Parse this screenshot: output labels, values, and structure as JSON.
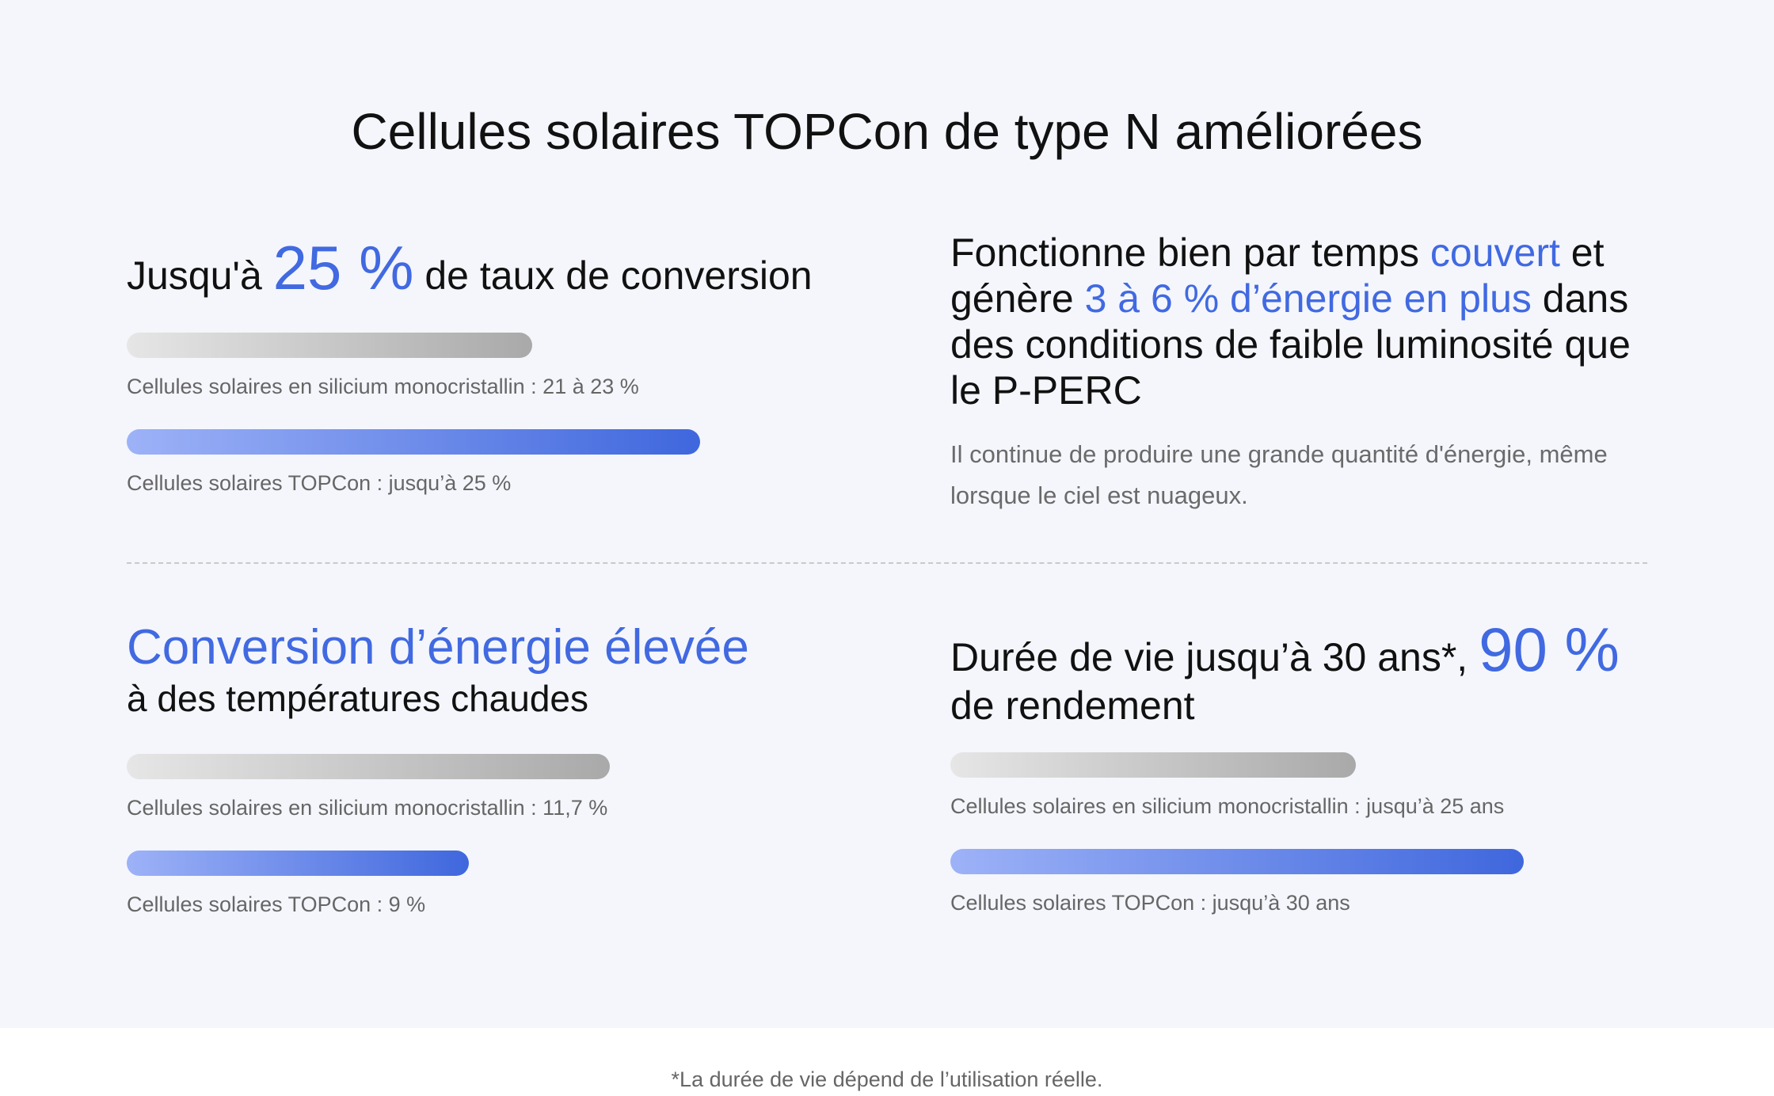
{
  "title": "Cellules solaires TOPCon de type N améliorées",
  "efficiency": {
    "prefix": "Jusqu'à ",
    "highlight": "25 %",
    "suffix": " de taux de conversion",
    "bars": [
      {
        "caption": "Cellules solaires en silicium monocristallin : 21 à 23 %",
        "level": 0.24
      },
      {
        "caption": "Cellules solaires TOPCon : jusqu’à 25 %",
        "level": 0.34
      }
    ]
  },
  "low_light": {
    "part1": "Fonctionne bien par temps ",
    "accent1": "couvert",
    "part2": " et génère ",
    "accent2": "3 à 6 % d’énergie en plus",
    "part3": " dans des conditions de faible luminosité que le P-PERC",
    "description": "Il continue de produire une grande quantité d'énergie, même lorsque le ciel est nuageux."
  },
  "temperature": {
    "title": "Conversion d’énergie élevée",
    "subtitle": "à des températures chaudes",
    "bars": [
      {
        "caption": "Cellules solaires en silicium monocristallin : 11,7 %",
        "level": 0.61
      },
      {
        "caption": "Cellules solaires TOPCon : 9 %",
        "level": 0.43
      }
    ]
  },
  "lifespan": {
    "prefix": "Durée de vie jusqu’à 30 ans*, ",
    "highlight": "90 %",
    "suffix": "de rendement",
    "bars": [
      {
        "caption": "Cellules solaires en silicium monocristallin : jusqu’à 25 ans",
        "level": 0.7
      },
      {
        "caption": "Cellules solaires TOPCon : jusqu’à 30 ans",
        "level": 1.0
      }
    ]
  },
  "footnote": "*La durée de vie dépend de l’utilisation réelle.",
  "colors": {
    "accent": "#4169e1",
    "background": "#f4f6fc"
  }
}
